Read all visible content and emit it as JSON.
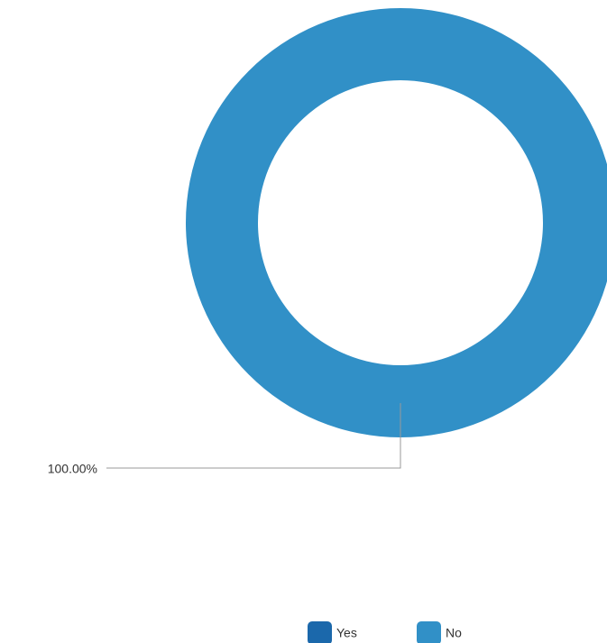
{
  "chart_data": {
    "type": "pie",
    "donut": true,
    "categories": [
      "Yes",
      "No"
    ],
    "values": [
      0,
      100
    ],
    "value_labels": [
      null,
      "100.00%"
    ],
    "colors": [
      "#1b68ab",
      "#3190c7"
    ],
    "legend": "bottom"
  }
}
